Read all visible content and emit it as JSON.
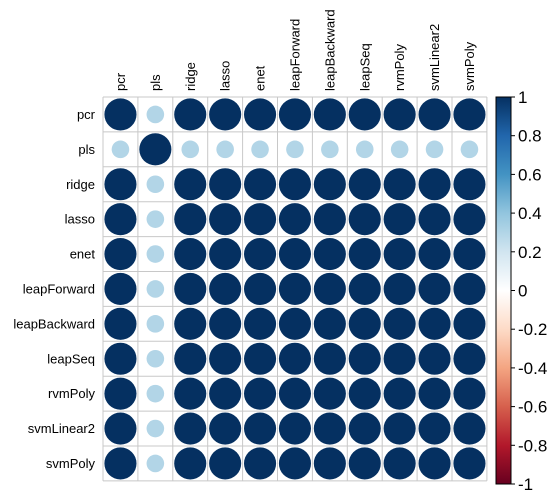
{
  "chart_data": {
    "type": "heatmap",
    "style": "circle",
    "variables": [
      "pcr",
      "pls",
      "ridge",
      "lasso",
      "enet",
      "leapForward",
      "leapBackward",
      "leapSeq",
      "rvmPoly",
      "svmLinear2",
      "svmPoly"
    ],
    "matrix": [
      [
        1.0,
        0.3,
        1.0,
        1.0,
        1.0,
        1.0,
        1.0,
        1.0,
        1.0,
        1.0,
        1.0
      ],
      [
        0.3,
        1.0,
        0.3,
        0.3,
        0.3,
        0.3,
        0.3,
        0.3,
        0.3,
        0.3,
        0.3
      ],
      [
        1.0,
        0.3,
        1.0,
        1.0,
        1.0,
        1.0,
        1.0,
        1.0,
        1.0,
        1.0,
        1.0
      ],
      [
        1.0,
        0.3,
        1.0,
        1.0,
        1.0,
        1.0,
        1.0,
        1.0,
        1.0,
        1.0,
        1.0
      ],
      [
        1.0,
        0.3,
        1.0,
        1.0,
        1.0,
        1.0,
        1.0,
        1.0,
        1.0,
        1.0,
        1.0
      ],
      [
        1.0,
        0.3,
        1.0,
        1.0,
        1.0,
        1.0,
        1.0,
        1.0,
        1.0,
        1.0,
        1.0
      ],
      [
        1.0,
        0.3,
        1.0,
        1.0,
        1.0,
        1.0,
        1.0,
        1.0,
        1.0,
        1.0,
        1.0
      ],
      [
        1.0,
        0.3,
        1.0,
        1.0,
        1.0,
        1.0,
        1.0,
        1.0,
        1.0,
        1.0,
        1.0
      ],
      [
        1.0,
        0.3,
        1.0,
        1.0,
        1.0,
        1.0,
        1.0,
        1.0,
        1.0,
        1.0,
        1.0
      ],
      [
        1.0,
        0.3,
        1.0,
        1.0,
        1.0,
        1.0,
        1.0,
        1.0,
        1.0,
        1.0,
        1.0
      ],
      [
        1.0,
        0.3,
        1.0,
        1.0,
        1.0,
        1.0,
        1.0,
        1.0,
        1.0,
        1.0,
        1.0
      ]
    ],
    "value_range": [
      -1,
      1
    ],
    "colorbar_ticks": [
      "1",
      "0.8",
      "0.6",
      "0.4",
      "0.2",
      "0",
      "-0.2",
      "-0.4",
      "-0.6",
      "-0.8",
      "-1"
    ],
    "colorbar_values": [
      1,
      0.8,
      0.6,
      0.4,
      0.2,
      0,
      -0.2,
      -0.4,
      -0.6,
      -0.8,
      -1
    ],
    "colorbar_stops": [
      {
        "value": -1.0,
        "color": "#67001f"
      },
      {
        "value": -0.8,
        "color": "#b2182b"
      },
      {
        "value": -0.6,
        "color": "#d6604d"
      },
      {
        "value": -0.4,
        "color": "#f4a582"
      },
      {
        "value": -0.2,
        "color": "#fddbc7"
      },
      {
        "value": 0.0,
        "color": "#ffffff"
      },
      {
        "value": 0.2,
        "color": "#d1e5f0"
      },
      {
        "value": 0.4,
        "color": "#92c5de"
      },
      {
        "value": 0.6,
        "color": "#4393c3"
      },
      {
        "value": 0.8,
        "color": "#2166ac"
      },
      {
        "value": 1.0,
        "color": "#053061"
      }
    ],
    "grid": true,
    "legend": "right",
    "title": "",
    "xlabel": "",
    "ylabel": ""
  },
  "colors": {
    "grid": "#c8c8c8",
    "border": "#000000"
  }
}
